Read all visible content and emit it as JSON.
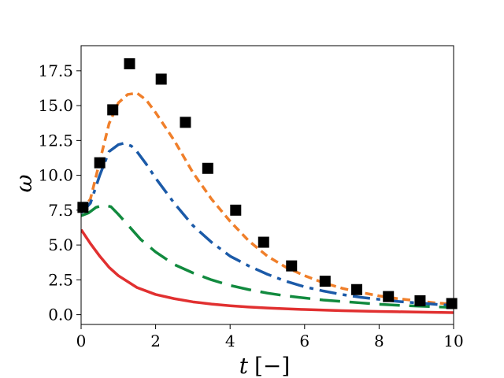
{
  "chart_data": {
    "type": "line",
    "xlabel": "t",
    "xlabel_unit": "[−]",
    "ylabel": "ω",
    "xlim": [
      0,
      10
    ],
    "ylim": [
      -0.7,
      19.3
    ],
    "x_ticks": [
      0,
      2,
      4,
      6,
      8,
      10
    ],
    "x_tick_labels": [
      "0",
      "2",
      "4",
      "6",
      "8",
      "10"
    ],
    "y_ticks": [
      0.0,
      2.5,
      5.0,
      7.5,
      10.0,
      12.5,
      15.0,
      17.5
    ],
    "y_tick_labels": [
      "0.0",
      "2.5",
      "5.0",
      "7.5",
      "10.0",
      "12.5",
      "15.0",
      "17.5"
    ],
    "grid": false,
    "series": [
      {
        "kind": "markers",
        "marker": "square",
        "color": "#000000",
        "x": [
          0.05,
          0.5,
          0.85,
          1.3,
          2.15,
          2.8,
          3.4,
          4.15,
          4.9,
          5.65,
          6.55,
          7.4,
          8.25,
          9.1,
          9.95
        ],
        "y": [
          7.7,
          10.9,
          14.7,
          18.0,
          16.9,
          13.8,
          10.5,
          7.5,
          5.2,
          3.5,
          2.4,
          1.8,
          1.3,
          1.0,
          0.8
        ]
      },
      {
        "kind": "line",
        "style": "dotted",
        "color": "#f07f2a",
        "x": [
          0,
          0.25,
          0.5,
          0.75,
          1.0,
          1.25,
          1.5,
          1.75,
          2.0,
          2.5,
          3.0,
          3.5,
          4.0,
          4.5,
          5.0,
          5.5,
          6.0,
          6.5,
          7.0,
          7.5,
          8.0,
          8.5,
          9.0,
          9.5,
          10.0
        ],
        "y": [
          7.4,
          8.3,
          11.0,
          13.7,
          15.2,
          15.8,
          15.9,
          15.4,
          14.5,
          12.5,
          10.2,
          8.3,
          6.7,
          5.3,
          4.2,
          3.4,
          2.8,
          2.3,
          1.9,
          1.6,
          1.35,
          1.15,
          1.0,
          0.85,
          0.75
        ]
      },
      {
        "kind": "line",
        "style": "dash-dot",
        "color": "#1b5aa8",
        "x": [
          0,
          0.25,
          0.5,
          0.75,
          1.0,
          1.15,
          1.35,
          1.5,
          1.75,
          2.0,
          2.5,
          3.0,
          3.5,
          4.0,
          4.5,
          5.0,
          5.5,
          6.0,
          6.5,
          7.0,
          7.5,
          8.0,
          8.5,
          9.0,
          9.5,
          10.0
        ],
        "y": [
          7.3,
          8.0,
          10.0,
          11.7,
          12.2,
          12.3,
          12.1,
          11.7,
          10.8,
          9.8,
          8.0,
          6.4,
          5.2,
          4.2,
          3.5,
          2.9,
          2.4,
          2.0,
          1.7,
          1.45,
          1.25,
          1.1,
          0.95,
          0.85,
          0.75,
          0.65
        ]
      },
      {
        "kind": "line",
        "style": "long-dash",
        "color": "#118a3e",
        "x": [
          0,
          0.2,
          0.4,
          0.6,
          0.8,
          1.0,
          1.3,
          1.6,
          2.0,
          2.5,
          3.0,
          3.5,
          4.0,
          4.5,
          5.0,
          5.5,
          6.0,
          6.5,
          7.0,
          7.5,
          8.0,
          8.5,
          9.0,
          9.5,
          10.0
        ],
        "y": [
          7.1,
          7.3,
          7.7,
          7.85,
          7.75,
          7.2,
          6.3,
          5.4,
          4.5,
          3.6,
          3.0,
          2.5,
          2.1,
          1.8,
          1.55,
          1.35,
          1.2,
          1.05,
          0.95,
          0.85,
          0.75,
          0.68,
          0.62,
          0.57,
          0.52
        ]
      },
      {
        "kind": "line",
        "style": "solid",
        "color": "#e13030",
        "x": [
          0,
          0.25,
          0.5,
          0.75,
          1.0,
          1.5,
          2.0,
          2.5,
          3.0,
          3.5,
          4.0,
          4.5,
          5.0,
          5.5,
          6.0,
          6.5,
          7.0,
          7.5,
          8.0,
          8.5,
          9.0,
          9.5,
          10.0
        ],
        "y": [
          6.1,
          5.1,
          4.2,
          3.4,
          2.8,
          1.95,
          1.45,
          1.15,
          0.92,
          0.76,
          0.64,
          0.55,
          0.48,
          0.42,
          0.37,
          0.33,
          0.29,
          0.26,
          0.23,
          0.21,
          0.19,
          0.17,
          0.15
        ]
      }
    ]
  }
}
